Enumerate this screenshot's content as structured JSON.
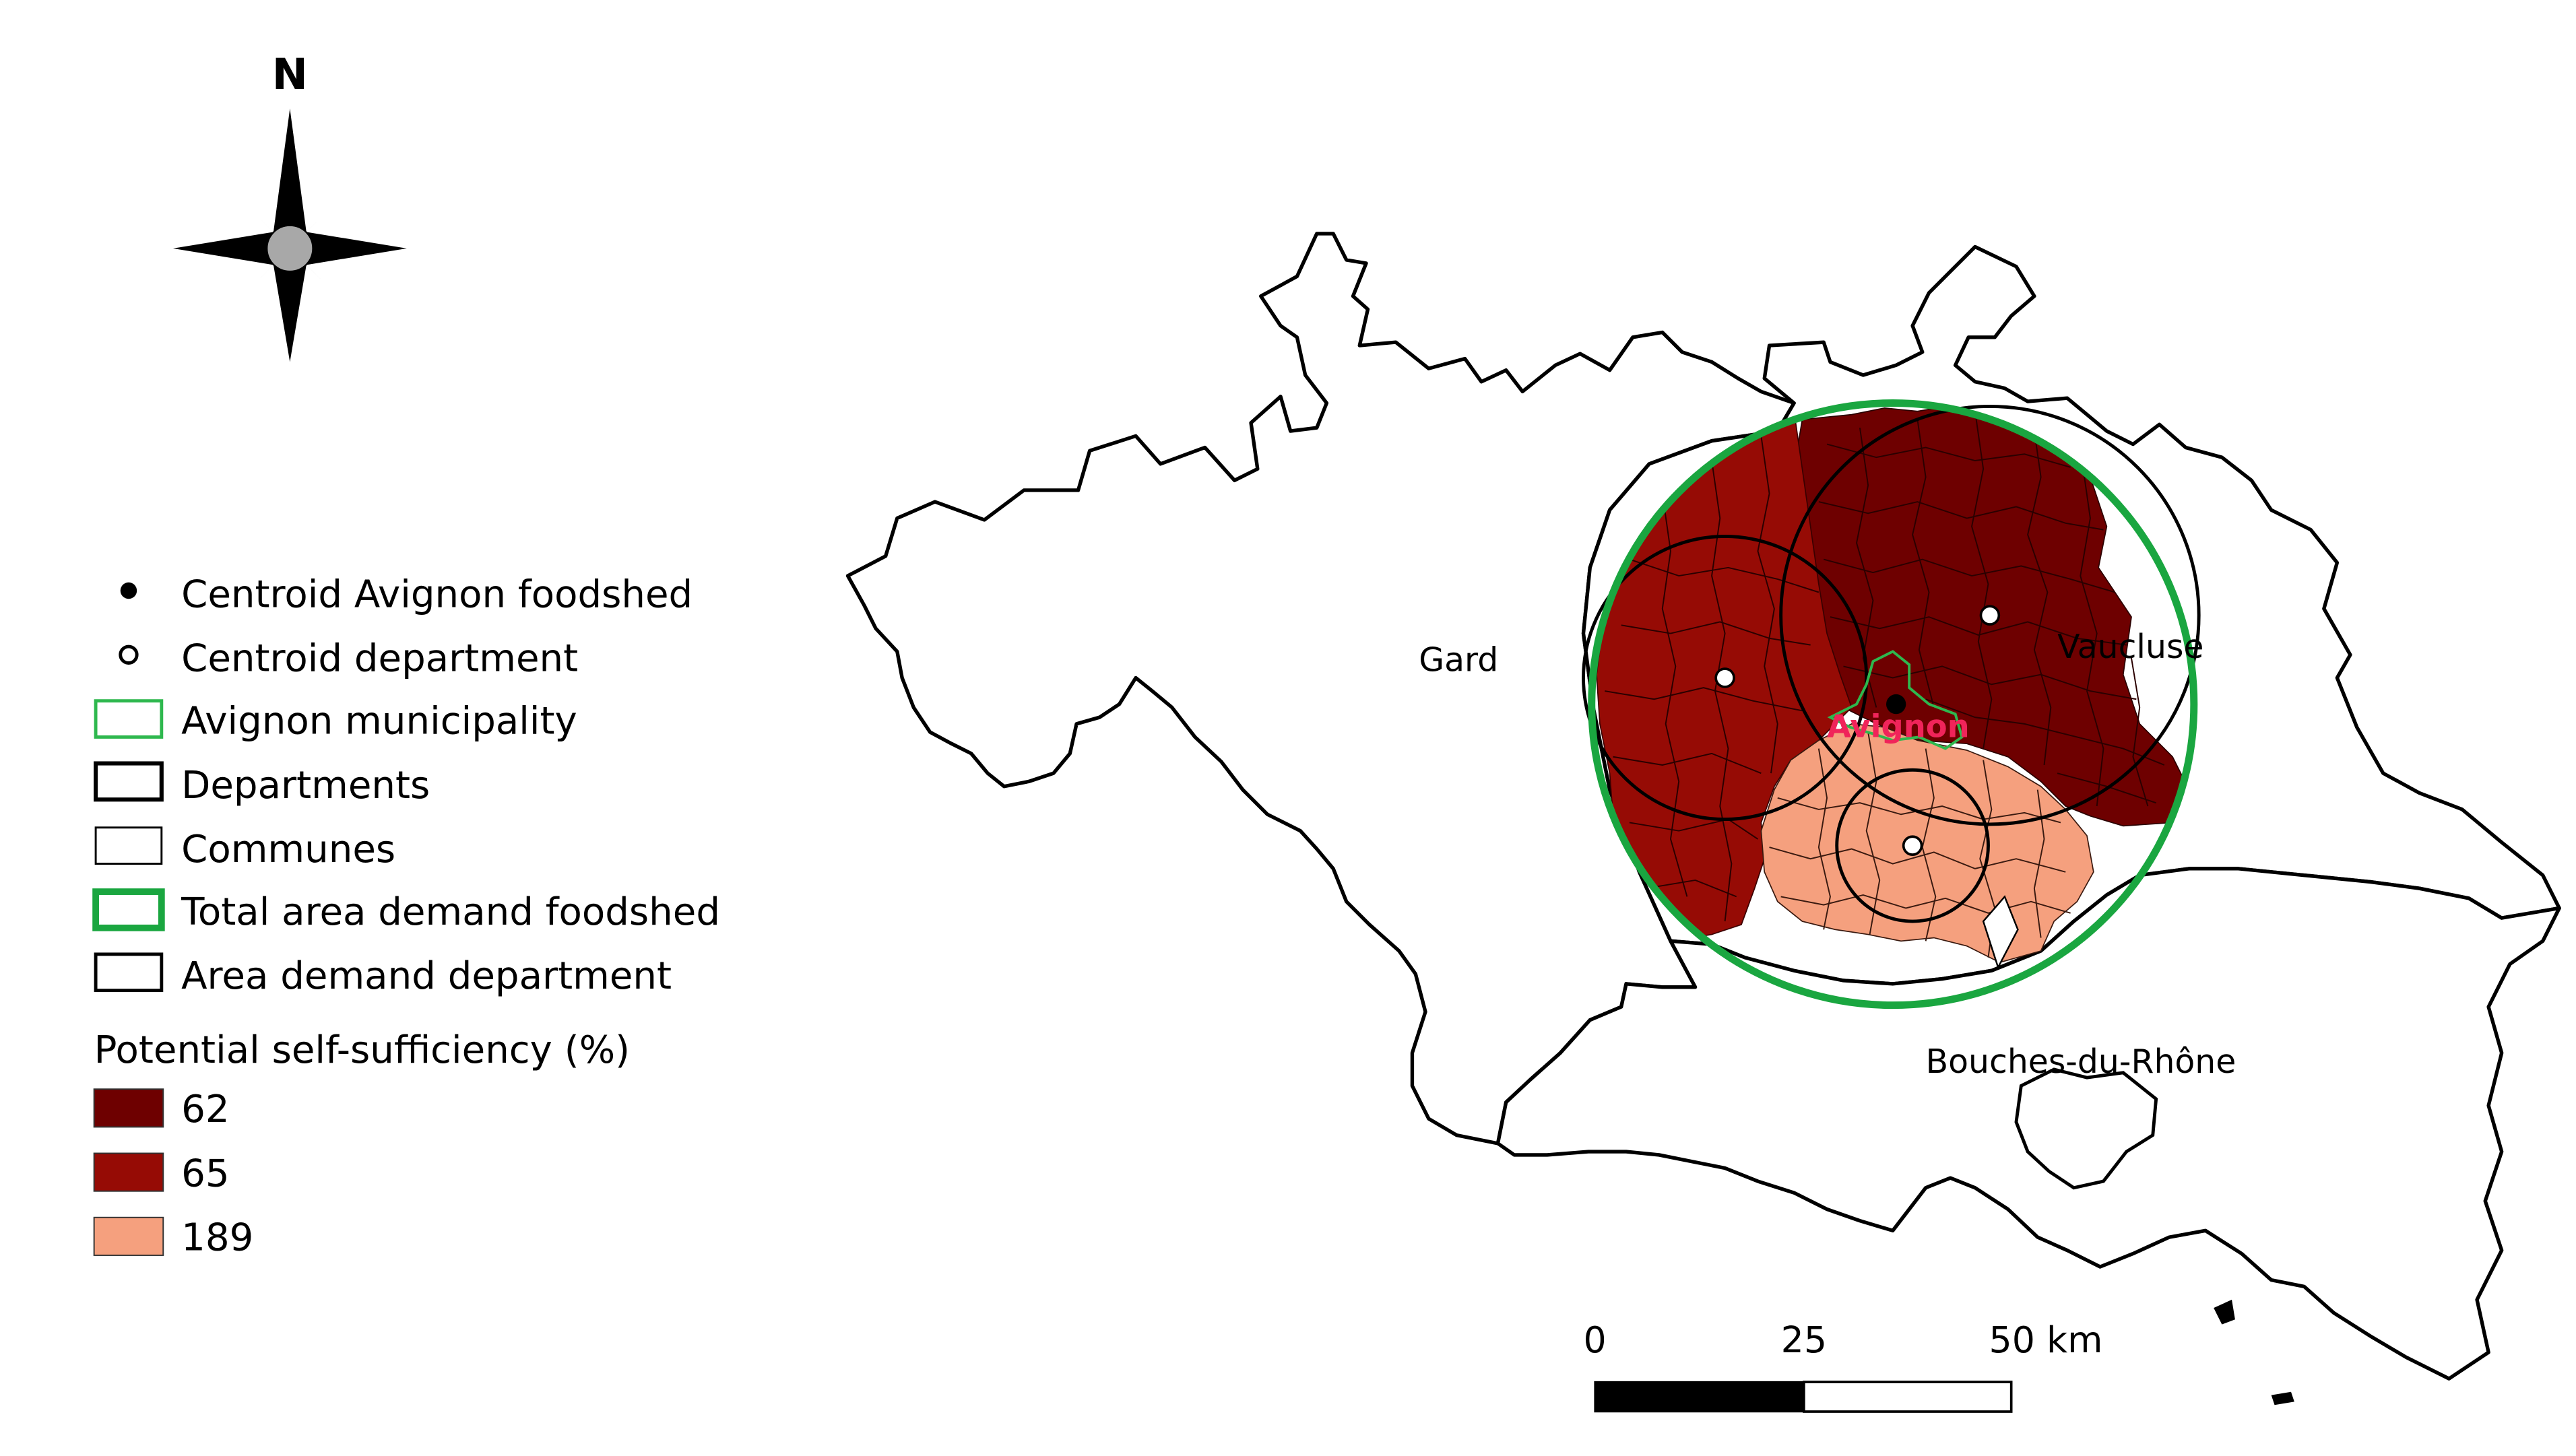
{
  "north_arrow": {
    "letter": "N"
  },
  "legend": {
    "symbols": [
      {
        "label": "Centroid Avignon foodshed",
        "symbol": "filled-dot-icon"
      },
      {
        "label": "Centroid department",
        "symbol": "hollow-dot-icon"
      },
      {
        "label": "Avignon municipality",
        "symbol": "green-outline-box",
        "color": "#2eb84e"
      },
      {
        "label": "Departments",
        "symbol": "thick-black-box"
      },
      {
        "label": "Communes",
        "symbol": "thin-black-box"
      },
      {
        "label": "Total area demand foodshed",
        "symbol": "thick-green-box",
        "color": "#1aa640"
      },
      {
        "label": "Area demand department",
        "symbol": "black-box"
      }
    ],
    "ramp_title": "Potential self-sufficiency (%)",
    "ramp": [
      {
        "label": "62",
        "color": "#6e0000"
      },
      {
        "label": "65",
        "color": "#960b05"
      },
      {
        "label": "189",
        "color": "#f5a07e"
      }
    ]
  },
  "map": {
    "labels": {
      "gard": "Gard",
      "vaucluse": "Vaucluse",
      "bouches": "Bouches-du-Rhône",
      "avignon": "Avignon"
    },
    "colors": {
      "avignon_label": "#f0245a",
      "foodshed_circle": "#1aa640",
      "avignon_outline": "#2eb84e"
    }
  },
  "scale_bar": {
    "ticks": [
      "0",
      "25",
      "50 km"
    ]
  }
}
